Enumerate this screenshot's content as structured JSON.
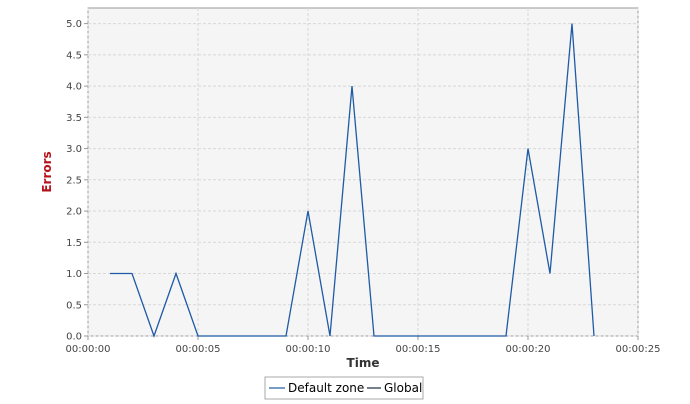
{
  "chart_data": {
    "type": "line",
    "xlabel": "Time",
    "ylabel": "Errors",
    "xlim": [
      "00:00:00",
      "00:00:25"
    ],
    "ylim": [
      0,
      5.25
    ],
    "x_ticks": [
      "00:00:00",
      "00:00:05",
      "00:00:10",
      "00:00:15",
      "00:00:20",
      "00:00:25"
    ],
    "y_ticks": [
      "0.0",
      "0.5",
      "1.0",
      "1.5",
      "2.0",
      "2.5",
      "3.0",
      "3.5",
      "4.0",
      "4.5",
      "5.0"
    ],
    "grid": true,
    "legend_position": "bottom",
    "series": [
      {
        "name": "Default zone",
        "color": "#1f5aa6",
        "x": [
          "00:00:01",
          "00:00:02",
          "00:00:03",
          "00:00:04",
          "00:00:05",
          "00:00:06",
          "00:00:07",
          "00:00:08",
          "00:00:09",
          "00:00:10",
          "00:00:11",
          "00:00:12",
          "00:00:13",
          "00:00:14",
          "00:00:15",
          "00:00:16",
          "00:00:17",
          "00:00:18",
          "00:00:19",
          "00:00:20",
          "00:00:21",
          "00:00:22",
          "00:00:23",
          "00:00:24"
        ],
        "values": [
          1,
          1,
          0,
          1,
          0,
          0,
          0,
          0,
          0,
          2,
          0,
          4,
          0,
          0,
          0,
          0,
          0,
          0,
          0,
          3,
          1,
          5,
          0,
          null
        ]
      },
      {
        "name": "Global",
        "color": "#1b2a41",
        "x": [],
        "values": []
      }
    ]
  },
  "colors": {
    "plot_background": "#f5f5f5",
    "grid": "#d8d8d8",
    "axis_title": "#b5121b",
    "axis": "#999999"
  }
}
